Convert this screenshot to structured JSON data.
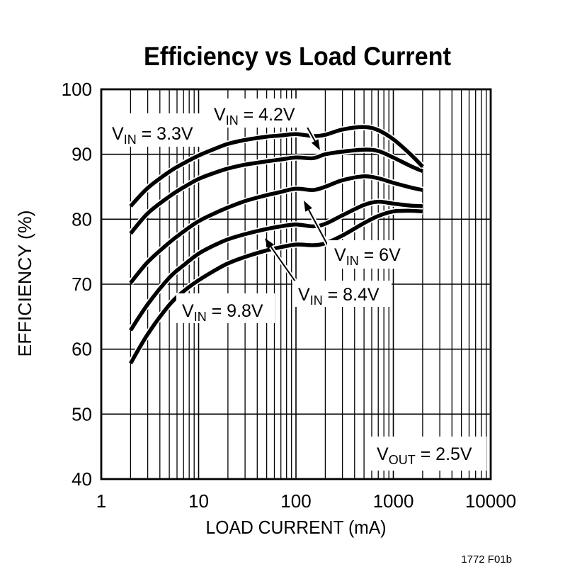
{
  "figure": {
    "title": "Efficiency vs Load Current",
    "footnote": "1772 F01b",
    "background_color": "#ffffff",
    "ink_color": "#000000"
  },
  "chart_data": {
    "type": "line",
    "title": "Efficiency vs Load Current",
    "xlabel": "LOAD CURRENT (mA)",
    "ylabel": "EFFICIENCY (%)",
    "x_scale": "log",
    "xlim": [
      1,
      10000
    ],
    "ylim": [
      40,
      100
    ],
    "x_ticks": [
      1,
      10,
      100,
      1000,
      10000
    ],
    "y_ticks": [
      40,
      50,
      60,
      70,
      80,
      90,
      100
    ],
    "grid": "full log minor vertical gridlines (2-9 each decade), horizontal gridlines every 10%",
    "legend_position": "inline-annotations",
    "x": [
      2,
      3,
      5,
      7,
      10,
      15,
      20,
      30,
      50,
      70,
      100,
      150,
      200,
      300,
      500,
      700,
      1000,
      1500,
      2000
    ],
    "series": [
      {
        "name": "VIN = 3.3V",
        "values": [
          82.0,
          84.8,
          87.3,
          88.6,
          89.8,
          90.9,
          91.6,
          92.2,
          92.7,
          92.9,
          93.1,
          92.8,
          93.0,
          93.8,
          94.2,
          93.7,
          92.3,
          90.0,
          88.1
        ]
      },
      {
        "name": "VIN = 4.2V",
        "values": [
          77.8,
          80.9,
          83.5,
          84.9,
          86.2,
          87.2,
          87.8,
          88.4,
          88.9,
          89.2,
          89.5,
          89.4,
          90.0,
          90.4,
          90.7,
          90.5,
          89.5,
          88.2,
          87.4
        ]
      },
      {
        "name": "VIN = 6V",
        "values": [
          70.2,
          73.4,
          76.4,
          78.1,
          79.7,
          81.0,
          81.8,
          82.8,
          83.7,
          84.2,
          84.7,
          84.5,
          85.0,
          86.0,
          86.6,
          86.3,
          85.6,
          84.9,
          84.5
        ]
      },
      {
        "name": "VIN = 8.4V",
        "values": [
          62.9,
          66.9,
          71.0,
          72.9,
          74.7,
          76.1,
          76.9,
          77.7,
          78.5,
          78.9,
          79.2,
          78.9,
          79.3,
          80.6,
          82.2,
          82.7,
          82.4,
          82.1,
          82.0
        ]
      },
      {
        "name": "VIN = 9.8V",
        "values": [
          57.8,
          62.3,
          66.8,
          68.9,
          70.6,
          72.2,
          73.2,
          74.2,
          75.2,
          75.7,
          76.1,
          76.0,
          76.3,
          77.5,
          79.4,
          80.5,
          81.2,
          81.3,
          81.2
        ]
      }
    ],
    "annotations": [
      {
        "id": "vin-3.3",
        "v": "V",
        "sub": "IN",
        "rest": " = 3.3V",
        "has_arrow": false
      },
      {
        "id": "vin-4.2",
        "v": "V",
        "sub": "IN",
        "rest": " = 4.2V",
        "has_arrow": true
      },
      {
        "id": "vin-6",
        "v": "V",
        "sub": "IN",
        "rest": " = 6V",
        "has_arrow": true
      },
      {
        "id": "vin-8.4",
        "v": "V",
        "sub": "IN",
        "rest": " = 8.4V",
        "has_arrow": true
      },
      {
        "id": "vin-9.8",
        "v": "V",
        "sub": "IN",
        "rest": " = 9.8V",
        "has_arrow": false
      },
      {
        "id": "vout",
        "v": "V",
        "sub": "OUT",
        "rest": " = 2.5V",
        "has_arrow": false
      }
    ]
  }
}
